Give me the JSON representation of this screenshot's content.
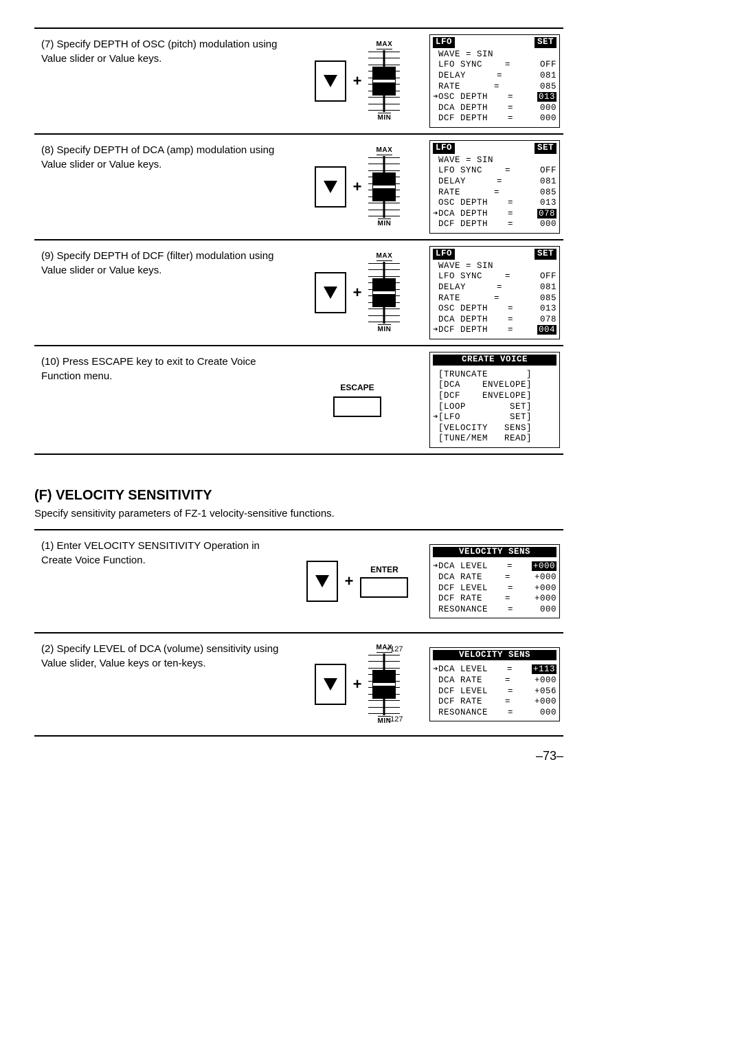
{
  "steps_lfo": [
    {
      "num": "(7)",
      "text": "Specify DEPTH of OSC (pitch) modulation using Value slider or Value keys.",
      "mid": "slider",
      "lcd": {
        "title_left": "LFO",
        "title_right": "SET",
        "rows": [
          {
            "l": "WAVE = SIN",
            "full": true
          },
          {
            "l": "LFO SYNC",
            "eq": "=",
            "v": "OFF"
          },
          {
            "l": "DELAY",
            "eq": "=",
            "v": "081"
          },
          {
            "l": "RATE",
            "eq": "=",
            "v": "085"
          },
          {
            "l": "OSC DEPTH",
            "eq": "=",
            "v": "013",
            "cursor": true,
            "inv": true
          },
          {
            "l": "DCA DEPTH",
            "eq": "=",
            "v": "000"
          },
          {
            "l": "DCF DEPTH",
            "eq": "=",
            "v": "000"
          }
        ]
      }
    },
    {
      "num": "(8)",
      "text": "Specify DEPTH of DCA (amp) modulation using Value slider or Value keys.",
      "mid": "slider",
      "lcd": {
        "title_left": "LFO",
        "title_right": "SET",
        "rows": [
          {
            "l": "WAVE = SIN",
            "full": true
          },
          {
            "l": "LFO SYNC",
            "eq": "=",
            "v": "OFF"
          },
          {
            "l": "DELAY",
            "eq": "=",
            "v": "081"
          },
          {
            "l": "RATE",
            "eq": "=",
            "v": "085"
          },
          {
            "l": "OSC DEPTH",
            "eq": "=",
            "v": "013"
          },
          {
            "l": "DCA DEPTH",
            "eq": "=",
            "v": "078",
            "cursor": true,
            "inv": true
          },
          {
            "l": "DCF DEPTH",
            "eq": "=",
            "v": "000"
          }
        ]
      }
    },
    {
      "num": "(9)",
      "text": "Specify DEPTH of DCF (filter) modulation using Value slider or Value keys.",
      "mid": "slider",
      "lcd": {
        "title_left": "LFO",
        "title_right": "SET",
        "rows": [
          {
            "l": "WAVE = SIN",
            "full": true
          },
          {
            "l": "LFO SYNC",
            "eq": "=",
            "v": "OFF"
          },
          {
            "l": "DELAY",
            "eq": "=",
            "v": "081"
          },
          {
            "l": "RATE",
            "eq": "=",
            "v": "085"
          },
          {
            "l": "OSC DEPTH",
            "eq": "=",
            "v": "013"
          },
          {
            "l": "DCA DEPTH",
            "eq": "=",
            "v": "078"
          },
          {
            "l": "DCF DEPTH",
            "eq": "=",
            "v": "004",
            "cursor": true,
            "inv": true
          }
        ]
      }
    },
    {
      "num": "(10)",
      "text": "Press ESCAPE key to exit to Create Voice Function menu.",
      "mid": "escape",
      "lcd": {
        "title_full": "CREATE  VOICE",
        "menu": [
          "[TRUNCATE       ]",
          "[DCA    ENVELOPE]",
          "[DCF    ENVELOPE]",
          "[LOOP        SET]",
          "[LFO         SET]",
          "[VELOCITY   SENS]",
          "[TUNE/MEM   READ]"
        ],
        "menu_cursor_index": 4
      }
    }
  ],
  "section": {
    "heading": "(F) VELOCITY SENSITIVITY",
    "sub": "Specify sensitivity parameters of FZ-1 velocity-sensitive functions."
  },
  "steps_vel": [
    {
      "num": "(1)",
      "text": "Enter VELOCITY SENSITIVITY Operation in Create Voice Function.",
      "mid": "enter",
      "lcd": {
        "vel_title": "VELOCITY SENS",
        "rows": [
          {
            "l": "DCA LEVEL",
            "eq": "=",
            "v": "+000",
            "cursor": true,
            "inv": true
          },
          {
            "l": "DCA RATE",
            "eq": "=",
            "v": "+000"
          },
          {
            "l": "DCF LEVEL",
            "eq": "=",
            "v": "+000"
          },
          {
            "l": "DCF RATE",
            "eq": "=",
            "v": "+000"
          },
          {
            "l": "RESONANCE",
            "eq": "=",
            "v": " 000"
          }
        ]
      }
    },
    {
      "num": "(2)",
      "text": "Specify LEVEL of DCA (volume) sensitivity using Value slider, Value keys or ten-keys.",
      "mid": "slider_range",
      "range_top": "+127",
      "range_bot": "−127",
      "lcd": {
        "vel_title": "VELOCITY SENS",
        "rows": [
          {
            "l": "DCA LEVEL",
            "eq": "=",
            "v": "+113",
            "cursor": true,
            "inv": true
          },
          {
            "l": "DCA RATE",
            "eq": "=",
            "v": "+000"
          },
          {
            "l": "DCF LEVEL",
            "eq": "=",
            "v": "+056"
          },
          {
            "l": "DCF RATE",
            "eq": "=",
            "v": "+000"
          },
          {
            "l": "RESONANCE",
            "eq": "=",
            "v": " 000"
          }
        ]
      }
    }
  ],
  "labels": {
    "max": "MAX",
    "min": "MIN",
    "escape": "ESCAPE",
    "enter": "ENTER"
  },
  "page_number": "–73–"
}
